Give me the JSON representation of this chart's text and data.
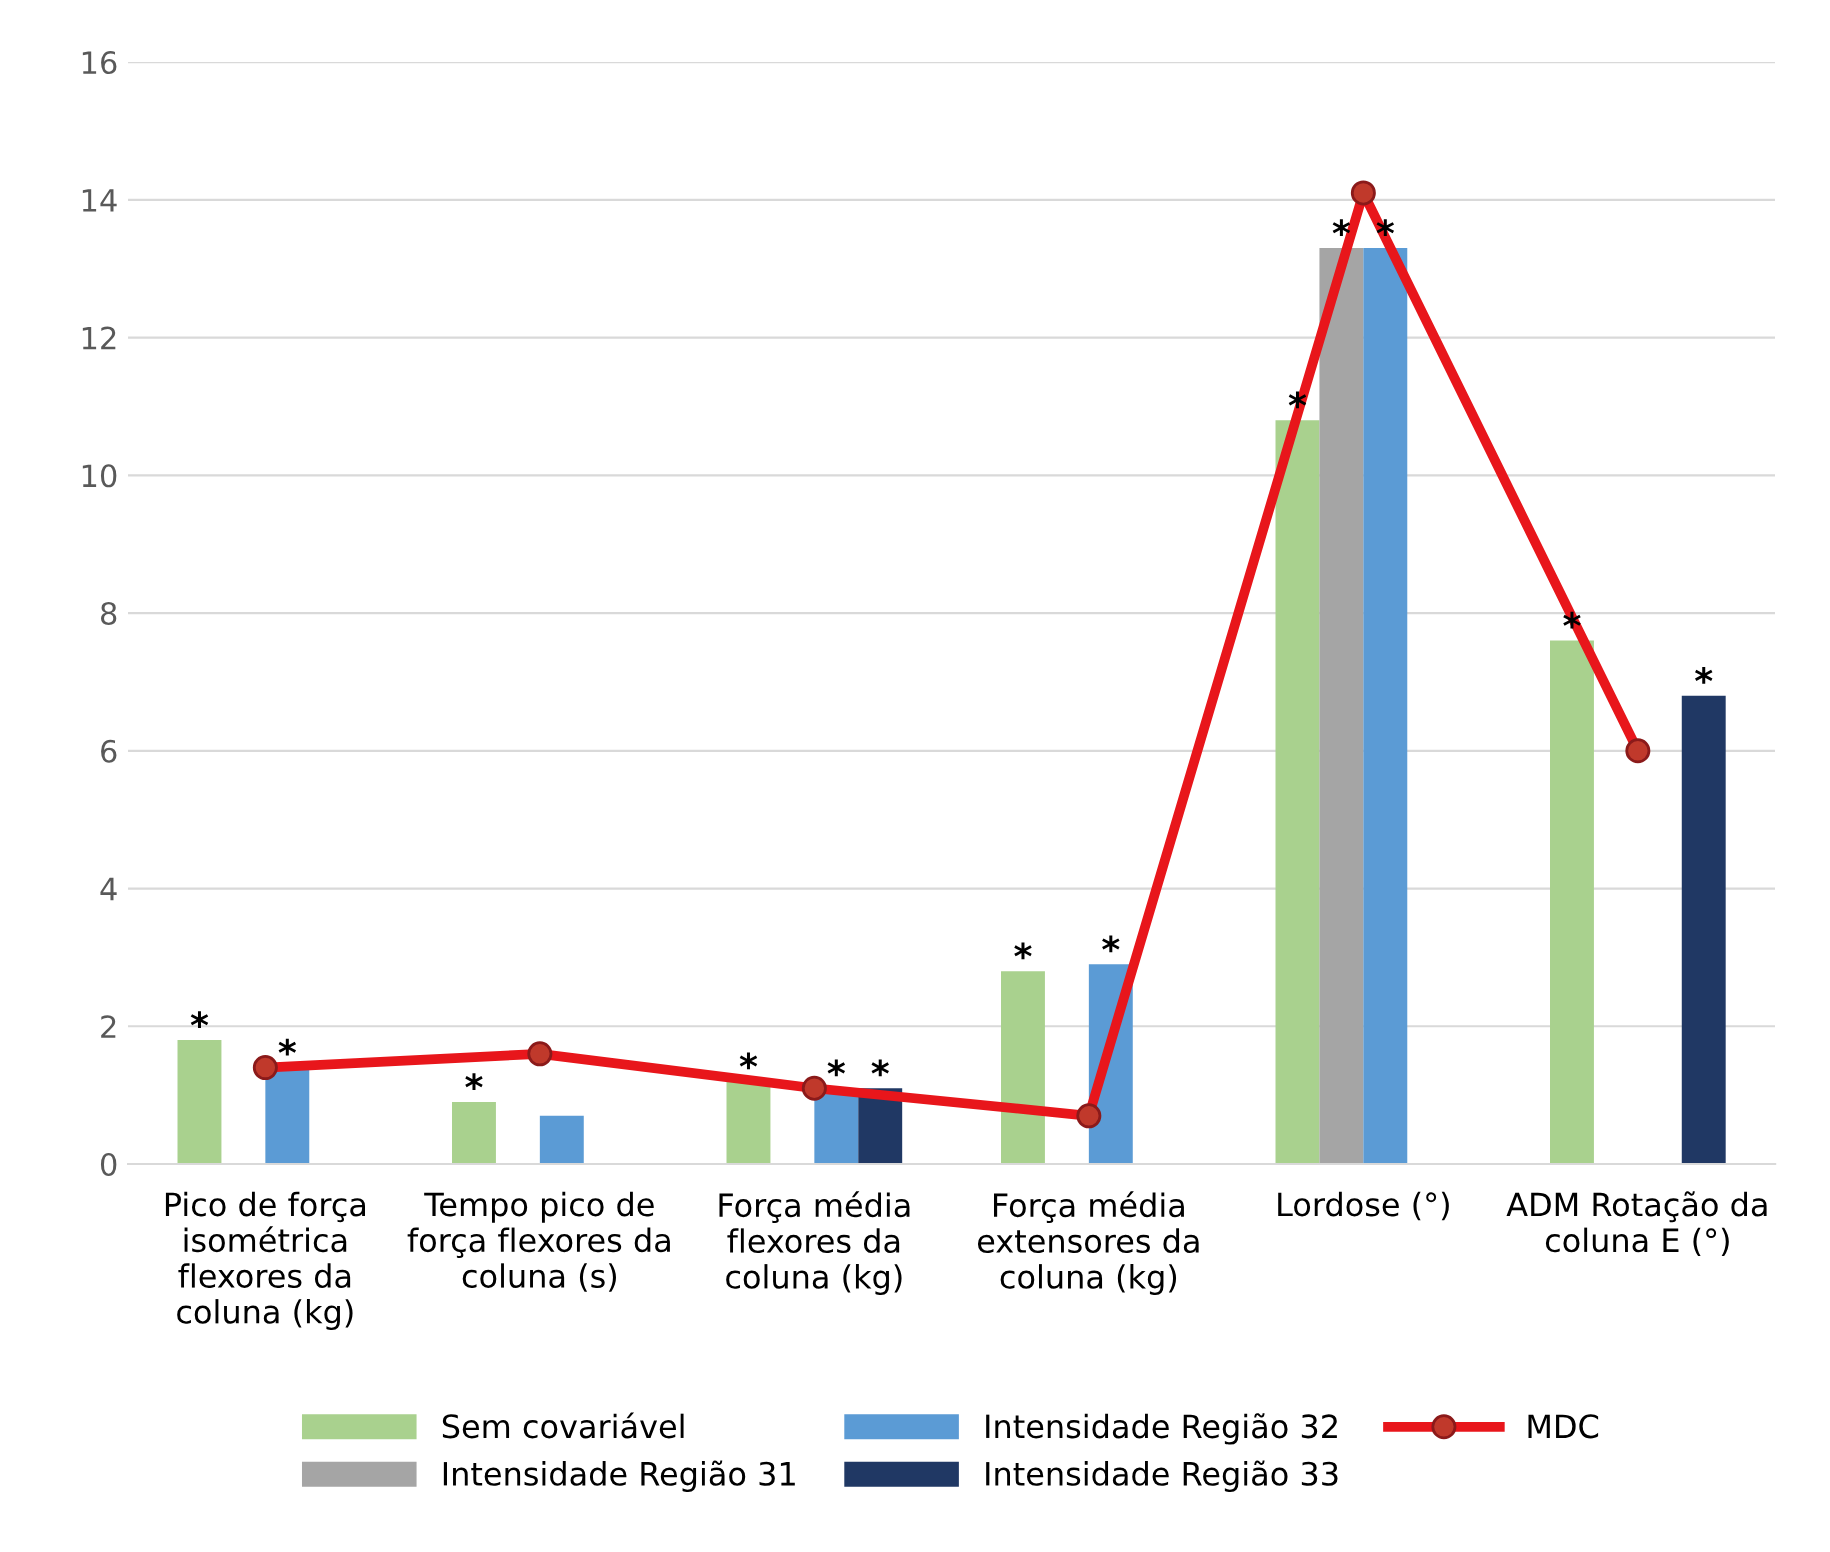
{
  "chart_data": {
    "type": "bar",
    "categories": [
      "Pico de força\nisométrica\nflexores da\ncoluna (kg)",
      "Tempo pico de\nforça flexores da\ncoluna (s)",
      "Força média\nflexores da\ncoluna (kg)",
      "Força média\nextensores da\ncoluna (kg)",
      "Lordose (°)",
      "ADM Rotação da\ncoluna E (°)"
    ],
    "series": [
      {
        "name": "Sem covariável",
        "color": "#a9d18e",
        "values": [
          1.8,
          0.9,
          1.2,
          2.8,
          10.8,
          7.6
        ],
        "value_labels": [
          "*",
          "*",
          "*",
          "*",
          "*",
          "*"
        ]
      },
      {
        "name": "Intensidade Região 31",
        "color": "#a5a5a5",
        "values": [
          null,
          null,
          null,
          null,
          13.3,
          null
        ],
        "value_labels": [
          null,
          null,
          null,
          null,
          "*",
          null
        ]
      },
      {
        "name": "Intensidade Região 32",
        "color": "#5b9bd5",
        "values": [
          1.4,
          0.7,
          1.1,
          2.9,
          13.3,
          null
        ],
        "value_labels": [
          "*",
          null,
          "*",
          "*",
          "*",
          null
        ]
      },
      {
        "name": "Intensidade Região 33",
        "color": "#203864",
        "values": [
          null,
          null,
          1.1,
          null,
          null,
          6.8
        ],
        "value_labels": [
          null,
          null,
          "*",
          null,
          null,
          "*"
        ]
      },
      {
        "name": "MDC",
        "type": "line",
        "color": "#e8161b",
        "marker": "circle",
        "values": [
          1.4,
          1.6,
          1.1,
          0.7,
          14.1,
          6.0
        ]
      }
    ],
    "ylim": [
      0,
      16
    ],
    "yticks": [
      0,
      2,
      4,
      6,
      8,
      10,
      12,
      14,
      16
    ],
    "grid": "y",
    "legend": "bottom"
  }
}
